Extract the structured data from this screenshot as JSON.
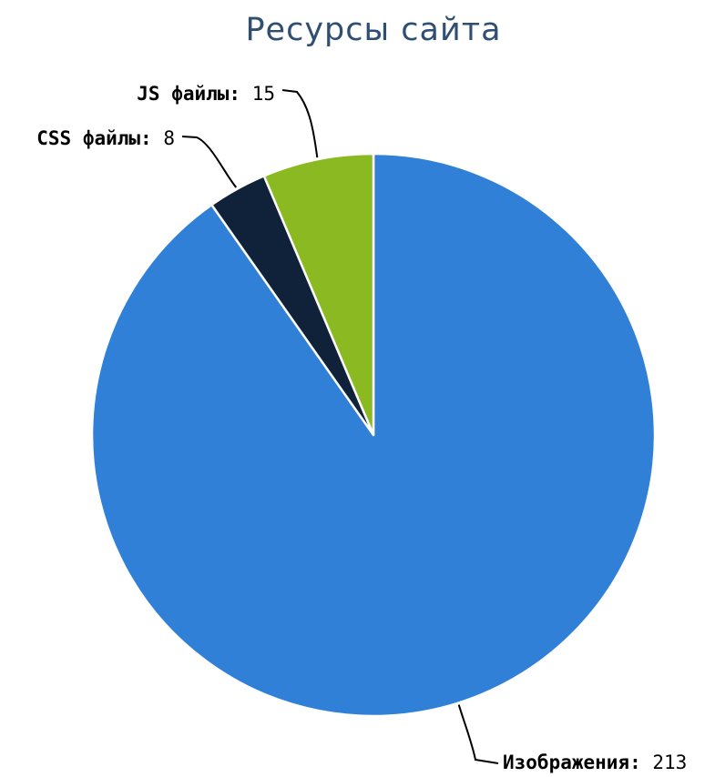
{
  "chart_data": {
    "type": "pie",
    "title": "Ресурсы сайта",
    "slices": [
      {
        "label": "Изображения",
        "value": 213,
        "color": "#3080d8"
      },
      {
        "label": "CSS файлы",
        "value": 8,
        "color": "#10223a"
      },
      {
        "label": "JS файлы",
        "value": 15,
        "color": "#8ab922"
      }
    ],
    "label_separator": ":",
    "legend": "none"
  }
}
